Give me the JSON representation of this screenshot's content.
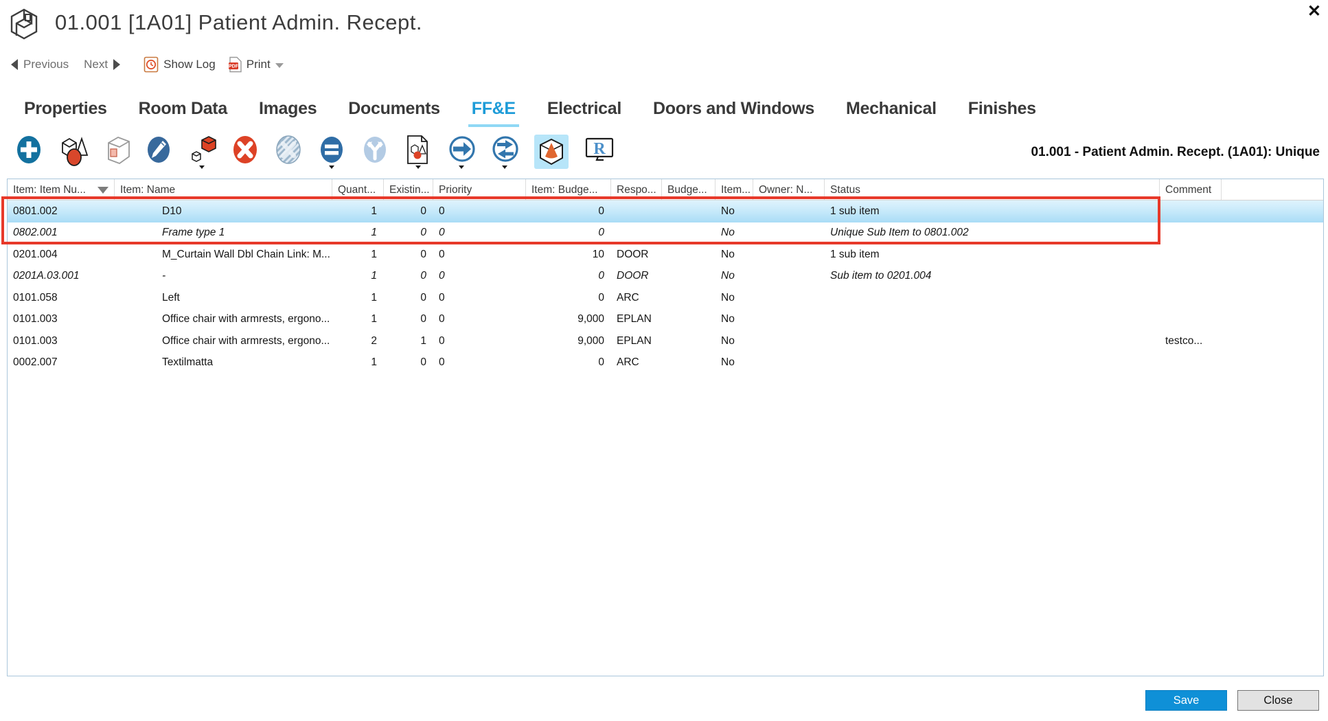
{
  "window": {
    "title": "01.001 [1A01] Patient Admin. Recept.",
    "close_glyph": "✕"
  },
  "nav": {
    "previous_label": "Previous",
    "next_label": "Next",
    "show_log_label": "Show Log",
    "print_label": "Print"
  },
  "tabs": [
    {
      "label": "Properties",
      "active": false
    },
    {
      "label": "Room Data",
      "active": false
    },
    {
      "label": "Images",
      "active": false
    },
    {
      "label": "Documents",
      "active": false
    },
    {
      "label": "FF&E",
      "active": true
    },
    {
      "label": "Electrical",
      "active": false
    },
    {
      "label": "Doors and Windows",
      "active": false
    },
    {
      "label": "Mechanical",
      "active": false
    },
    {
      "label": "Finishes",
      "active": false
    }
  ],
  "toolbar": {
    "icons": [
      "add-item-icon",
      "item-shapes-icon",
      "package-icon",
      "edit-icon",
      "copy-item-icon",
      "delete-icon",
      "delete-disabled-icon",
      "subtract-icon",
      "split-icon",
      "item-document-icon",
      "move-item-icon",
      "transfer-item-icon",
      "view-3d-icon",
      "revit-icon"
    ],
    "active_icon": "view-3d-icon",
    "context_label": "01.001 - Patient Admin. Recept. (1A01): Unique"
  },
  "table": {
    "columns": [
      "Item: Item Nu...",
      "Item: Name",
      "Quant...",
      "Existin...",
      "Priority",
      "Item: Budge...",
      "Respo...",
      "Budge...",
      "Item...",
      "Owner: N...",
      "Status",
      "Comment"
    ],
    "sorted_column": "Item: Item Nu...",
    "sort_direction": "descending",
    "rows": [
      {
        "selected": true,
        "italic": false,
        "cells": [
          "0801.002",
          "D10",
          "1",
          "0",
          "0",
          "0",
          "",
          "",
          "No",
          "",
          "1 sub item",
          ""
        ]
      },
      {
        "selected": false,
        "italic": true,
        "cells": [
          "0802.001",
          "Frame type 1",
          "1",
          "0",
          "0",
          "0",
          "",
          "",
          "No",
          "",
          "Unique Sub Item to 0801.002",
          ""
        ]
      },
      {
        "selected": false,
        "italic": false,
        "cells": [
          "0201.004",
          "M_Curtain Wall Dbl Chain Link: M...",
          "1",
          "0",
          "0",
          "10",
          "DOOR",
          "",
          "No",
          "",
          "1 sub item",
          ""
        ]
      },
      {
        "selected": false,
        "italic": true,
        "cells": [
          "0201A.03.001",
          "-",
          "1",
          "0",
          "0",
          "0",
          "DOOR",
          "",
          "No",
          "",
          "Sub item to 0201.004",
          ""
        ]
      },
      {
        "selected": false,
        "italic": false,
        "cells": [
          "0101.058",
          "Left",
          "1",
          "0",
          "0",
          "0",
          "ARC",
          "",
          "No",
          "",
          "",
          ""
        ]
      },
      {
        "selected": false,
        "italic": false,
        "cells": [
          "0101.003",
          "Office chair with armrests, ergono...",
          "1",
          "0",
          "0",
          "9,000",
          "EPLAN",
          "",
          "No",
          "",
          "",
          ""
        ]
      },
      {
        "selected": false,
        "italic": false,
        "cells": [
          "0101.003",
          "Office chair with armrests, ergono...",
          "2",
          "1",
          "0",
          "9,000",
          "EPLAN",
          "",
          "No",
          "",
          "",
          "testco..."
        ]
      },
      {
        "selected": false,
        "italic": false,
        "cells": [
          "0002.007",
          "Textilmatta",
          "1",
          "0",
          "0",
          "0",
          "ARC",
          "",
          "No",
          "",
          "",
          ""
        ]
      }
    ],
    "annotation": "red rectangle highlighting first two rows"
  },
  "footer": {
    "save_label": "Save",
    "close_label": "Close"
  },
  "colors": {
    "tab_active": "#1e9cd8",
    "tab_underline": "#8fd8f5",
    "selected_row": "#bce4f9",
    "annotation_red": "#e7392a",
    "save_button": "#0f90d7",
    "toolbar_active_bg": "#b7e5f9"
  }
}
